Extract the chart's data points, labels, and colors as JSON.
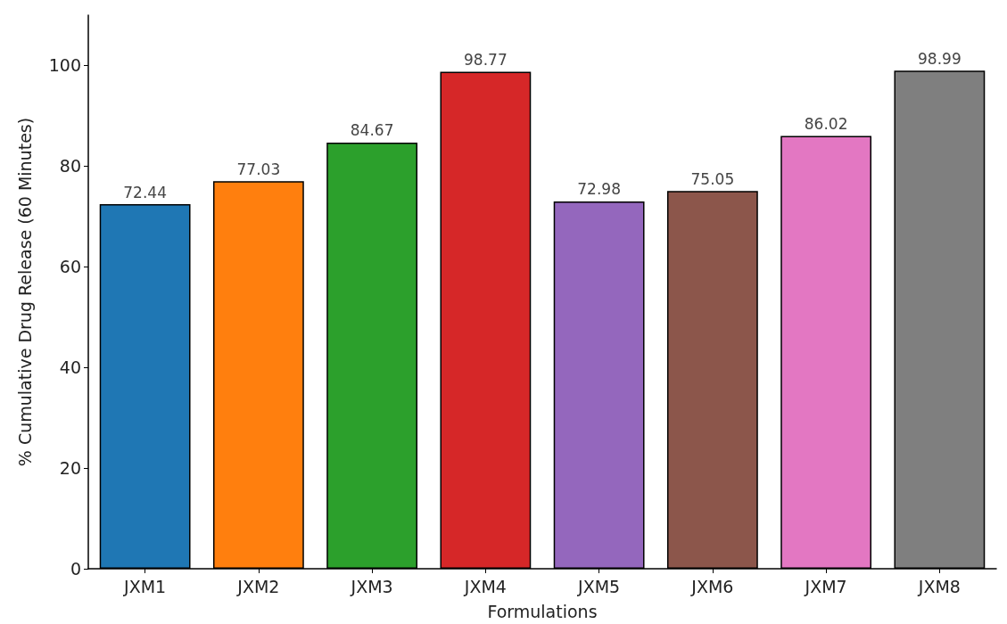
{
  "chart_data": {
    "type": "bar",
    "xlabel": "Formulations",
    "ylabel": "% Cumulative Drug Release (60 Minutes)",
    "categories": [
      "JXM1",
      "JXM2",
      "JXM3",
      "JXM4",
      "JXM5",
      "JXM6",
      "JXM7",
      "JXM8"
    ],
    "values": [
      72.44,
      77.03,
      84.67,
      98.77,
      72.98,
      75.05,
      86.02,
      98.99
    ],
    "colors": [
      "#1f77b4",
      "#ff7f0e",
      "#2ca02c",
      "#d62728",
      "#9467bd",
      "#8c564b",
      "#e377c2",
      "#7f7f7f"
    ],
    "ylim": [
      0,
      110
    ],
    "yticks": [
      0,
      20,
      40,
      60,
      80,
      100
    ],
    "grid": false,
    "data_labels": true
  }
}
